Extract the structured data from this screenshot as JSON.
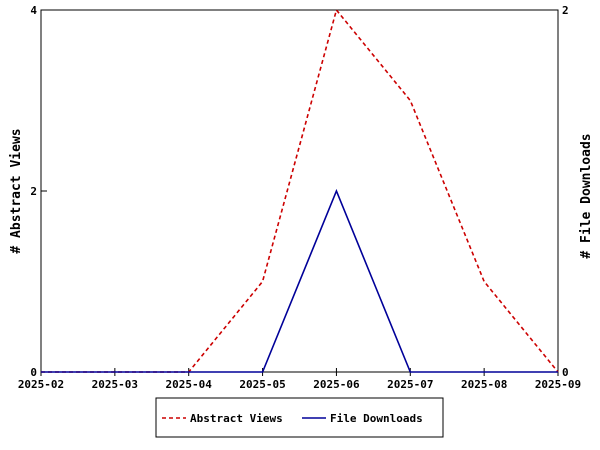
{
  "chart_data": {
    "type": "line",
    "x_categories": [
      "2025-02",
      "2025-03",
      "2025-04",
      "2025-05",
      "2025-06",
      "2025-07",
      "2025-08",
      "2025-09"
    ],
    "left_axis": {
      "label": "# Abstract Views",
      "ylim": [
        0,
        4
      ],
      "ticks": [
        "0",
        "2",
        "4"
      ]
    },
    "right_axis": {
      "label": "# File Downloads",
      "ylim": [
        0,
        2
      ],
      "ticks": [
        "0",
        "2"
      ]
    },
    "series": [
      {
        "name": "Abstract Views",
        "axis": "left",
        "color": "#cc0000",
        "style": "dashed",
        "values": [
          0,
          0,
          0,
          1,
          4,
          3,
          1,
          0
        ]
      },
      {
        "name": "File Downloads",
        "axis": "right",
        "color": "#000099",
        "style": "solid",
        "values": [
          0,
          0,
          0,
          0,
          1,
          0,
          0,
          0
        ]
      }
    ],
    "legend_position": "bottom-center",
    "grid": false
  }
}
